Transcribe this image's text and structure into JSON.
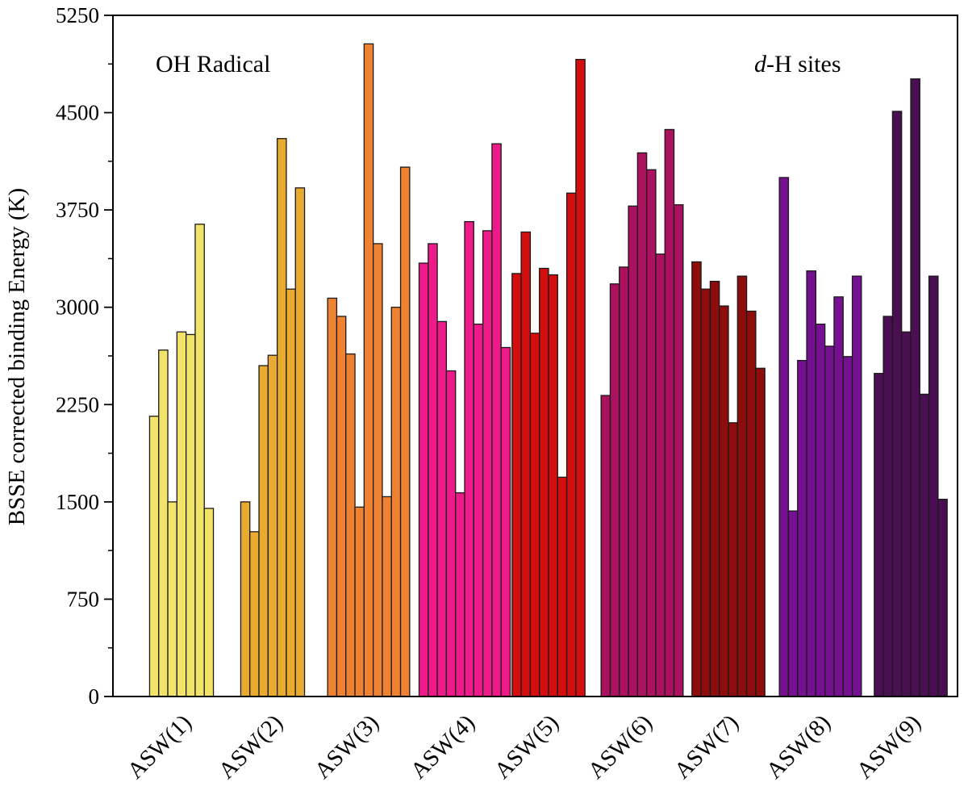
{
  "chart_data": {
    "type": "bar",
    "ylabel": "BSSE corrected binding Energy (K)",
    "xlabel": "",
    "ylim": [
      0,
      5250
    ],
    "yticks": [
      "0",
      "750",
      "1500",
      "2250",
      "3000",
      "3750",
      "4500",
      "5250"
    ],
    "yminor_step": 375,
    "grid": false,
    "annotations": {
      "left": "OH Radical",
      "right_italic": "d",
      "right_rest": "-H sites"
    },
    "groups": [
      {
        "name": "ASW(1)",
        "color": "#f2e46a",
        "values": [
          2160,
          2670,
          1500,
          2810,
          2790,
          3640,
          1450
        ]
      },
      {
        "name": "ASW(2)",
        "color": "#e8ab30",
        "values": [
          1500,
          1270,
          2550,
          2630,
          4300,
          3140,
          3920
        ]
      },
      {
        "name": "ASW(3)",
        "color": "#ee8230",
        "values": [
          3070,
          2930,
          2640,
          1460,
          5030,
          3490,
          1540,
          3000,
          4080
        ]
      },
      {
        "name": "ASW(4)",
        "color": "#ee1a8a",
        "values": [
          3340,
          3490,
          2890,
          2510,
          1570,
          3660,
          2870,
          3590,
          4260,
          2690
        ]
      },
      {
        "name": "ASW(5)",
        "color": "#d20e0e",
        "values": [
          3260,
          3580,
          2800,
          3300,
          3250,
          1690,
          3880,
          4910
        ]
      },
      {
        "name": "ASW(6)",
        "color": "#ab115e",
        "values": [
          2320,
          3180,
          3310,
          3780,
          4190,
          4060,
          3410,
          4370,
          3790
        ]
      },
      {
        "name": "ASW(7)",
        "color": "#8d0c0c",
        "values": [
          3350,
          3140,
          3200,
          3010,
          2110,
          3240,
          2970,
          2530
        ]
      },
      {
        "name": "ASW(8)",
        "color": "#751090",
        "values": [
          4000,
          1430,
          2590,
          3280,
          2870,
          2700,
          3080,
          2620,
          3240
        ]
      },
      {
        "name": "ASW(9)",
        "color": "#4a0e52",
        "values": [
          2490,
          2930,
          4510,
          2810,
          4760,
          2330,
          3240,
          1520
        ]
      }
    ]
  }
}
